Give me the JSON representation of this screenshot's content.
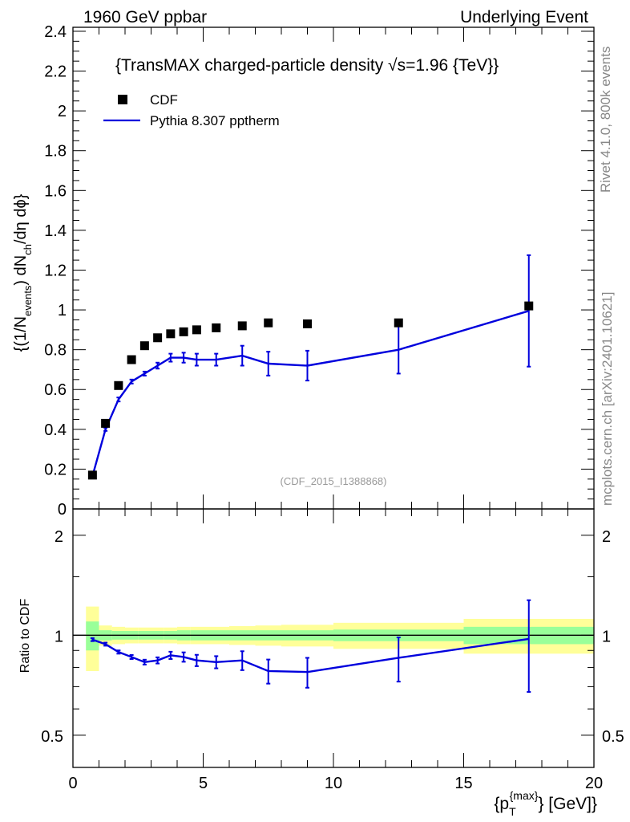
{
  "header": {
    "left": "1960 GeV ppbar",
    "right": "Underlying Event"
  },
  "side_labels": {
    "rivet": "Rivet 4.1.0,  800k events",
    "mcplots": "mcplots.cern.ch [arXiv:2401.10621]"
  },
  "chart_data": [
    {
      "type": "scatter",
      "panel": "main",
      "title": "{TransMAX charged-particle density √s=1.96 {TeV}}",
      "title_prefix": "{TransMAX charged-particle density ",
      "title_sqrt": "√",
      "title_suffix": "s=1.96 {TeV}}",
      "ylabel": "{(1/N_events) dN_ch/dη dϕ}",
      "ylabel_parts": {
        "a": "{(1/N",
        "b": "events",
        "c": ") dN",
        "d": "ch",
        "e": "/dη  dϕ}"
      },
      "xlim": [
        0,
        20
      ],
      "ylim": [
        0,
        2.42
      ],
      "yticks": [
        "0",
        "0.2",
        "0.4",
        "0.6",
        "0.8",
        "1",
        "1.2",
        "1.4",
        "1.6",
        "1.8",
        "2",
        "2.2",
        "2.4"
      ],
      "ytick_values": [
        0,
        0.2,
        0.4,
        0.6,
        0.8,
        1.0,
        1.2,
        1.4,
        1.6,
        1.8,
        2.0,
        2.2,
        2.4
      ],
      "analysis_tag": "(CDF_2015_I1388868)",
      "legend": [
        {
          "name": "CDF",
          "style": "marker"
        },
        {
          "name": "Pythia 8.307 pptherm",
          "style": "line"
        }
      ],
      "series": [
        {
          "name": "CDF",
          "color": "#000000",
          "x": [
            0.75,
            1.25,
            1.75,
            2.25,
            2.75,
            3.25,
            3.75,
            4.25,
            4.75,
            5.5,
            6.5,
            7.5,
            9.0,
            12.5,
            17.5
          ],
          "y": [
            0.17,
            0.43,
            0.62,
            0.75,
            0.82,
            0.86,
            0.88,
            0.89,
            0.9,
            0.91,
            0.92,
            0.935,
            0.93,
            0.935,
            1.02
          ]
        },
        {
          "name": "Pythia 8.307 pptherm",
          "color": "#0000dd",
          "x": [
            0.75,
            1.25,
            1.75,
            2.25,
            2.75,
            3.25,
            3.75,
            4.25,
            4.75,
            5.5,
            6.5,
            7.5,
            9.0,
            12.5,
            17.5
          ],
          "y": [
            0.165,
            0.4,
            0.55,
            0.64,
            0.68,
            0.72,
            0.76,
            0.76,
            0.75,
            0.75,
            0.77,
            0.73,
            0.72,
            0.8,
            0.995
          ],
          "yerr": [
            0.005,
            0.008,
            0.01,
            0.01,
            0.01,
            0.015,
            0.02,
            0.025,
            0.03,
            0.03,
            0.05,
            0.06,
            0.075,
            0.12,
            0.28
          ]
        }
      ]
    },
    {
      "type": "line",
      "panel": "ratio",
      "ylabel": "Ratio to CDF",
      "xlabel": "{p_T^{max}} [GeV]}",
      "xlabel_parts": {
        "a": "{p",
        "b": "T",
        "c": "{max}",
        "d": "} [GeV]}"
      },
      "xlim": [
        0,
        20
      ],
      "ylim": [
        0.4,
        2.4
      ],
      "yscale": "log",
      "xticks": [
        "0",
        "5",
        "10",
        "15",
        "20"
      ],
      "xtick_values": [
        0,
        5,
        10,
        15,
        20
      ],
      "yticks": [
        "0.5",
        "1",
        "2"
      ],
      "ytick_values": [
        0.5,
        1,
        2
      ],
      "bands": {
        "edges": [
          0.5,
          1.0,
          1.5,
          2.0,
          2.5,
          3.0,
          3.5,
          4.0,
          4.5,
          5.0,
          6.0,
          7.0,
          8.0,
          10.0,
          15.0,
          20.0
        ],
        "green_rel": [
          0.1,
          0.035,
          0.03,
          0.03,
          0.03,
          0.03,
          0.03,
          0.035,
          0.035,
          0.035,
          0.035,
          0.035,
          0.035,
          0.04,
          0.06
        ],
        "yellow_rel": [
          0.22,
          0.07,
          0.06,
          0.055,
          0.055,
          0.055,
          0.055,
          0.06,
          0.06,
          0.06,
          0.065,
          0.07,
          0.075,
          0.09,
          0.12
        ],
        "green_color": "#99ff99",
        "yellow_color": "#ffff99"
      },
      "series": [
        {
          "name": "Pythia 8.307 pptherm / CDF",
          "color": "#0000dd",
          "x": [
            0.75,
            1.25,
            1.75,
            2.25,
            2.75,
            3.25,
            3.75,
            4.25,
            4.75,
            5.5,
            6.5,
            7.5,
            9.0,
            12.5,
            17.5
          ],
          "y": [
            0.97,
            0.94,
            0.89,
            0.86,
            0.83,
            0.84,
            0.87,
            0.86,
            0.84,
            0.83,
            0.84,
            0.78,
            0.775,
            0.855,
            0.975
          ],
          "yerr": [
            0.01,
            0.01,
            0.01,
            0.012,
            0.014,
            0.018,
            0.022,
            0.028,
            0.033,
            0.035,
            0.055,
            0.065,
            0.08,
            0.13,
            0.3
          ]
        }
      ]
    }
  ]
}
